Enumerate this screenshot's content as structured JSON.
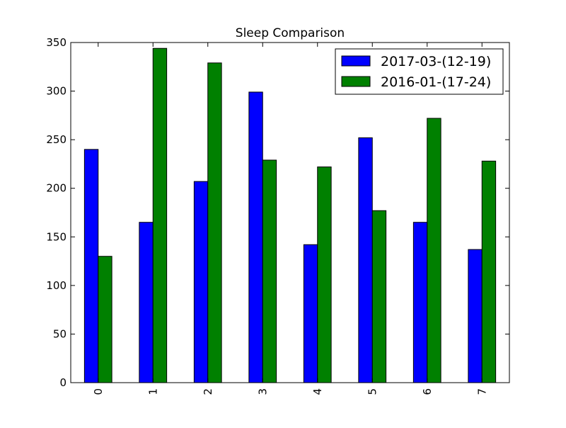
{
  "chart_data": {
    "type": "bar",
    "title": "Sleep Comparison",
    "xlabel": "",
    "ylabel": "",
    "categories": [
      "0",
      "1",
      "2",
      "3",
      "4",
      "5",
      "6",
      "7"
    ],
    "series": [
      {
        "name": "2017-03-(12-19)",
        "color": "#0000ff",
        "values": [
          240,
          165,
          207,
          299,
          142,
          252,
          165,
          137
        ]
      },
      {
        "name": "2016-01-(17-24)",
        "color": "#008000",
        "values": [
          130,
          344,
          329,
          229,
          222,
          177,
          272,
          228
        ]
      }
    ],
    "ylim": [
      0,
      350
    ],
    "yticks": [
      0,
      50,
      100,
      150,
      200,
      250,
      300,
      350
    ],
    "grid": false,
    "legend_position": "top-right",
    "x_tick_rotation": "vertical"
  }
}
